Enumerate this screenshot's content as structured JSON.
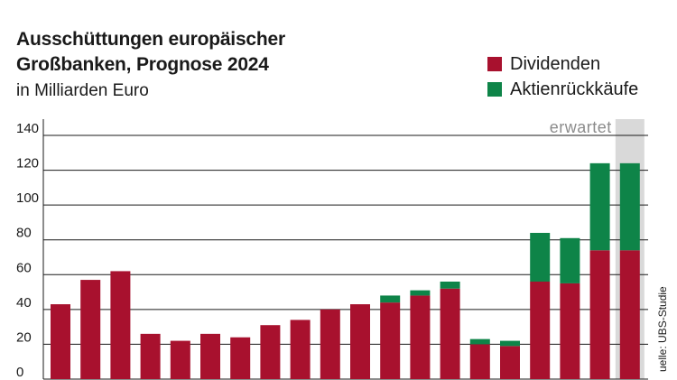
{
  "title": "Ausschüttungen europäischer Großbanken, Prognose 2024",
  "subtitle": "in Milliarden Euro",
  "source": "uelle: UBS-Studie",
  "colors": {
    "dividends": "#a8112e",
    "buybacks": "#0e8448",
    "grid": "#1a1a1a",
    "expected_band": "#d9d9d9",
    "expected_text": "#8c8c8c"
  },
  "legend": [
    {
      "label": "Dividenden",
      "color": "#a8112e"
    },
    {
      "label": "Aktienrückkäufe",
      "color": "#0e8448"
    }
  ],
  "chart_data": {
    "type": "bar",
    "stacked": true,
    "title": "Ausschüttungen europäischer Großbanken, Prognose 2024",
    "subtitle": "in Milliarden Euro",
    "annotation": "erwartet",
    "ylim": [
      0,
      140
    ],
    "yticks": [
      0,
      20,
      40,
      60,
      80,
      100,
      120,
      140
    ],
    "grid": true,
    "legend_position": "top-right",
    "series": [
      {
        "name": "Dividenden",
        "color": "#a8112e",
        "values": [
          43,
          57,
          62,
          26,
          22,
          26,
          24,
          31,
          34,
          40,
          43,
          44,
          48,
          52,
          20,
          19,
          56,
          55,
          74,
          74
        ]
      },
      {
        "name": "Aktienrückkäufe",
        "color": "#0e8448",
        "values": [
          0,
          0,
          0,
          0,
          0,
          0,
          0,
          0,
          0,
          0,
          0,
          4,
          3,
          4,
          3,
          3,
          28,
          26,
          50,
          50
        ]
      }
    ],
    "expected_bars": [
      19
    ]
  }
}
